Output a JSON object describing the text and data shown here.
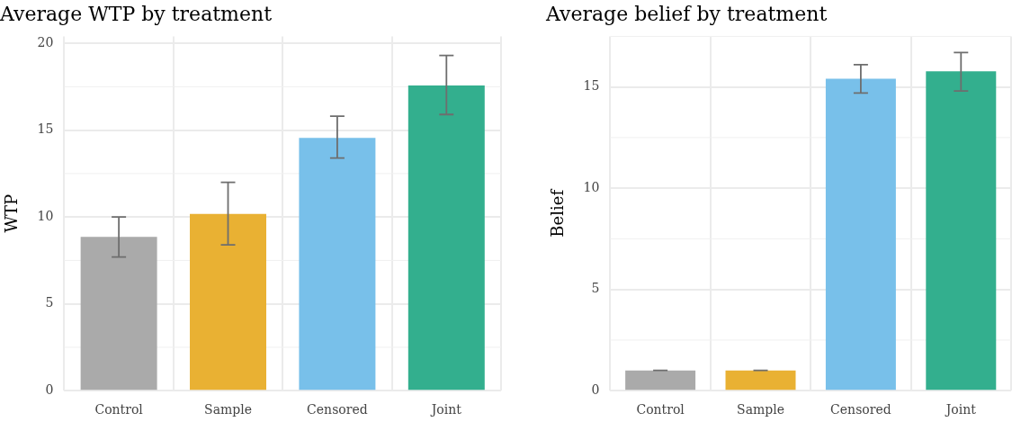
{
  "chart_data": [
    {
      "type": "bar",
      "title": "Average WTP by treatment",
      "ylabel": "WTP",
      "categories": [
        "Control",
        "Sample",
        "Censored",
        "Joint"
      ],
      "values": [
        8.85,
        10.18,
        14.56,
        17.57
      ],
      "colors": [
        "#aaaaaa",
        "#e9b133",
        "#78c0ea",
        "#33af8e"
      ],
      "errors": [
        [
          7.7,
          10.0
        ],
        [
          8.4,
          12.0
        ],
        [
          13.4,
          15.8
        ],
        [
          15.9,
          19.3
        ]
      ],
      "ylim": [
        0,
        20.4
      ],
      "yticks": [
        0,
        5,
        10,
        15,
        20
      ],
      "grid": true,
      "legend": false
    },
    {
      "type": "bar",
      "title": "Average belief by treatment",
      "ylabel": "Belief",
      "categories": [
        "Control",
        "Sample",
        "Censored",
        "Joint"
      ],
      "values": [
        1.0,
        1.0,
        15.41,
        15.77
      ],
      "colors": [
        "#aaaaaa",
        "#e9b133",
        "#78c0ea",
        "#33af8e"
      ],
      "errors": [
        [
          1.0,
          1.0
        ],
        [
          1.0,
          1.0
        ],
        [
          14.7,
          16.1
        ],
        [
          14.8,
          16.7
        ]
      ],
      "ylim": [
        0,
        17.5
      ],
      "yticks": [
        0,
        5,
        10,
        15
      ],
      "grid": true,
      "legend": false
    }
  ]
}
